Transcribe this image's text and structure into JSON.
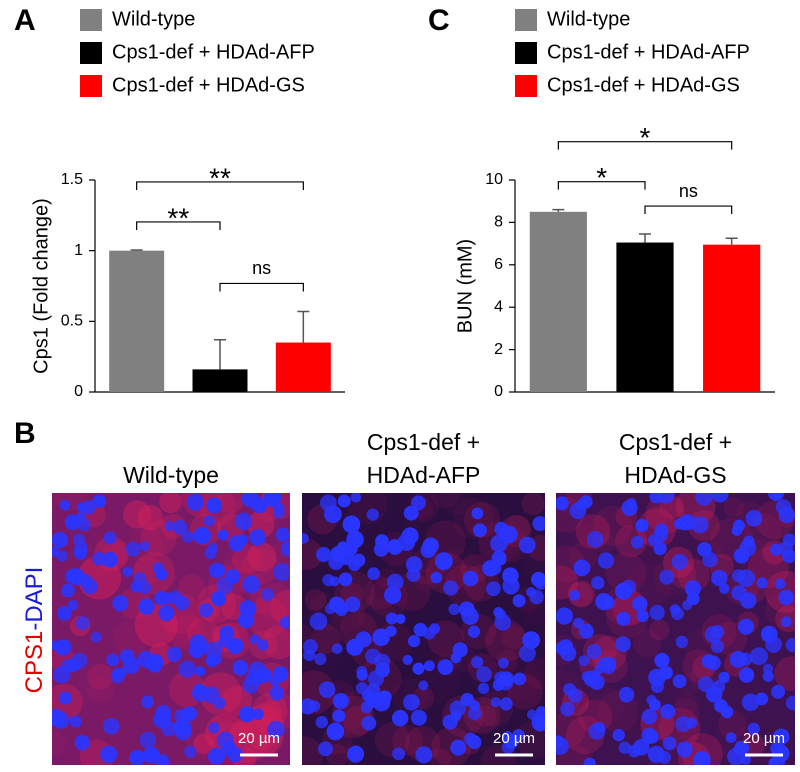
{
  "chart_data": [
    {
      "type": "bar",
      "panel_label": "A",
      "ylabel": "Cps1 (Fold change)",
      "series": [
        {
          "name": "Wild-type",
          "color": "#808080",
          "values": [
            1.0
          ],
          "errors": [
            0.005
          ]
        },
        {
          "name": "Cps1-def + HDAd-AFP",
          "color": "#000000",
          "values": [
            0.16
          ],
          "errors": [
            0.21
          ]
        },
        {
          "name": "Cps1-def + HDAd-GS",
          "color": "#ff0000",
          "values": [
            0.35
          ],
          "errors": [
            0.22
          ]
        }
      ],
      "ylim": [
        0,
        1.5
      ],
      "yticks": [
        0,
        0.5,
        1,
        1.5
      ],
      "annotations": [
        {
          "text": "**",
          "series": [
            0,
            1
          ]
        },
        {
          "text": "**",
          "series": [
            0,
            2
          ]
        },
        {
          "text": "ns",
          "series": [
            1,
            2
          ]
        }
      ]
    },
    {
      "type": "bar",
      "panel_label": "C",
      "ylabel": "BUN (mM)",
      "series": [
        {
          "name": "Wild-type",
          "color": "#808080",
          "values": [
            8.5
          ],
          "errors": [
            0.1
          ]
        },
        {
          "name": "Cps1-def + HDAd-AFP",
          "color": "#000000",
          "values": [
            7.05
          ],
          "errors": [
            0.4
          ]
        },
        {
          "name": "Cps1-def + HDAd-GS",
          "color": "#ff0000",
          "values": [
            6.95
          ],
          "errors": [
            0.3
          ]
        }
      ],
      "ylim": [
        0,
        10
      ],
      "yticks": [
        0,
        2,
        4,
        6,
        8,
        10
      ],
      "annotations": [
        {
          "text": "*",
          "series": [
            0,
            1
          ]
        },
        {
          "text": "ns",
          "series": [
            1,
            2
          ]
        },
        {
          "text": "*",
          "series": [
            0,
            2
          ]
        }
      ]
    }
  ],
  "micrographs": {
    "panel_label": "B",
    "ylabel": [
      "CPS1",
      "-DAPI"
    ],
    "panels": [
      {
        "title": [
          "Wild-type"
        ],
        "scale_bar": "20 µm"
      },
      {
        "title": [
          "Cps1-def +",
          "HDAd-AFP"
        ],
        "scale_bar": "20 µm"
      },
      {
        "title": [
          "Cps1-def +",
          "HDAd-GS"
        ],
        "scale_bar": "20 µm"
      }
    ]
  }
}
